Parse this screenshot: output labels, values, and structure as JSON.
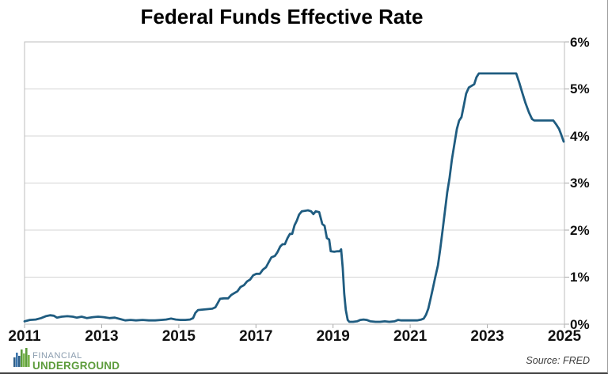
{
  "chart": {
    "title": "Federal Funds Effective Rate",
    "source": "Source: FRED"
  },
  "branding": {
    "line1": "FINANCIAL",
    "line2": "UNDERGROUND",
    "line1_color": "#8a9cae",
    "line2_color": "#5d9c3c",
    "icon": "skyline-bars-icon"
  },
  "chart_data": {
    "type": "line",
    "title": "Federal Funds Effective Rate",
    "series_name": "Federal Funds Effective Rate (%)",
    "line_color": "#1f5c80",
    "xlabel": "",
    "ylabel": "",
    "xlim": [
      2011,
      2025
    ],
    "ylim": [
      0,
      6
    ],
    "x_ticks": [
      2011,
      2013,
      2015,
      2017,
      2019,
      2021,
      2023,
      2025
    ],
    "y_ticks": [
      0,
      1,
      2,
      3,
      4,
      5,
      6
    ],
    "y_tick_suffix": "%",
    "grid": "horizontal-only",
    "legend": "none",
    "points": [
      [
        2011.0,
        0.06
      ],
      [
        2011.14,
        0.09
      ],
      [
        2011.29,
        0.1
      ],
      [
        2011.43,
        0.13
      ],
      [
        2011.55,
        0.17
      ],
      [
        2011.66,
        0.19
      ],
      [
        2011.76,
        0.18
      ],
      [
        2011.84,
        0.14
      ],
      [
        2011.96,
        0.16
      ],
      [
        2012.11,
        0.17
      ],
      [
        2012.25,
        0.16
      ],
      [
        2012.35,
        0.14
      ],
      [
        2012.48,
        0.16
      ],
      [
        2012.62,
        0.13
      ],
      [
        2012.77,
        0.15
      ],
      [
        2012.91,
        0.16
      ],
      [
        2013.05,
        0.15
      ],
      [
        2013.2,
        0.13
      ],
      [
        2013.34,
        0.14
      ],
      [
        2013.48,
        0.11
      ],
      [
        2013.61,
        0.08
      ],
      [
        2013.75,
        0.09
      ],
      [
        2013.89,
        0.08
      ],
      [
        2014.06,
        0.09
      ],
      [
        2014.22,
        0.08
      ],
      [
        2014.39,
        0.08
      ],
      [
        2014.55,
        0.09
      ],
      [
        2014.67,
        0.1
      ],
      [
        2014.8,
        0.12
      ],
      [
        2014.92,
        0.1
      ],
      [
        2015.04,
        0.09
      ],
      [
        2015.17,
        0.09
      ],
      [
        2015.29,
        0.1
      ],
      [
        2015.37,
        0.13
      ],
      [
        2015.43,
        0.24
      ],
      [
        2015.5,
        0.3
      ],
      [
        2015.6,
        0.31
      ],
      [
        2015.74,
        0.32
      ],
      [
        2015.87,
        0.33
      ],
      [
        2015.95,
        0.36
      ],
      [
        2016.01,
        0.45
      ],
      [
        2016.07,
        0.54
      ],
      [
        2016.17,
        0.55
      ],
      [
        2016.28,
        0.55
      ],
      [
        2016.36,
        0.62
      ],
      [
        2016.44,
        0.66
      ],
      [
        2016.52,
        0.7
      ],
      [
        2016.6,
        0.79
      ],
      [
        2016.69,
        0.83
      ],
      [
        2016.77,
        0.91
      ],
      [
        2016.85,
        0.95
      ],
      [
        2016.93,
        1.04
      ],
      [
        2017.01,
        1.07
      ],
      [
        2017.1,
        1.07
      ],
      [
        2017.18,
        1.16
      ],
      [
        2017.26,
        1.21
      ],
      [
        2017.32,
        1.3
      ],
      [
        2017.4,
        1.42
      ],
      [
        2017.49,
        1.45
      ],
      [
        2017.55,
        1.52
      ],
      [
        2017.63,
        1.65
      ],
      [
        2017.69,
        1.7
      ],
      [
        2017.75,
        1.7
      ],
      [
        2017.82,
        1.83
      ],
      [
        2017.88,
        1.92
      ],
      [
        2017.94,
        1.92
      ],
      [
        2018.0,
        2.1
      ],
      [
        2018.06,
        2.2
      ],
      [
        2018.12,
        2.33
      ],
      [
        2018.19,
        2.4
      ],
      [
        2018.27,
        2.41
      ],
      [
        2018.35,
        2.42
      ],
      [
        2018.43,
        2.4
      ],
      [
        2018.49,
        2.34
      ],
      [
        2018.55,
        2.4
      ],
      [
        2018.64,
        2.38
      ],
      [
        2018.72,
        2.13
      ],
      [
        2018.78,
        2.09
      ],
      [
        2018.84,
        1.83
      ],
      [
        2018.9,
        1.8
      ],
      [
        2018.94,
        1.55
      ],
      [
        2019.03,
        1.54
      ],
      [
        2019.11,
        1.55
      ],
      [
        2019.17,
        1.55
      ],
      [
        2019.21,
        1.59
      ],
      [
        2019.25,
        1.2
      ],
      [
        2019.29,
        0.65
      ],
      [
        2019.33,
        0.3
      ],
      [
        2019.38,
        0.09
      ],
      [
        2019.42,
        0.05
      ],
      [
        2019.52,
        0.05
      ],
      [
        2019.62,
        0.06
      ],
      [
        2019.71,
        0.09
      ],
      [
        2019.79,
        0.1
      ],
      [
        2019.87,
        0.09
      ],
      [
        2019.97,
        0.06
      ],
      [
        2020.1,
        0.05
      ],
      [
        2020.22,
        0.05
      ],
      [
        2020.34,
        0.06
      ],
      [
        2020.46,
        0.05
      ],
      [
        2020.59,
        0.06
      ],
      [
        2020.69,
        0.09
      ],
      [
        2020.77,
        0.08
      ],
      [
        2020.87,
        0.08
      ],
      [
        2020.98,
        0.08
      ],
      [
        2021.08,
        0.08
      ],
      [
        2021.18,
        0.08
      ],
      [
        2021.29,
        0.1
      ],
      [
        2021.35,
        0.12
      ],
      [
        2021.41,
        0.2
      ],
      [
        2021.47,
        0.33
      ],
      [
        2021.53,
        0.55
      ],
      [
        2021.59,
        0.77
      ],
      [
        2021.65,
        1.0
      ],
      [
        2021.72,
        1.25
      ],
      [
        2021.78,
        1.6
      ],
      [
        2021.84,
        2.0
      ],
      [
        2021.9,
        2.4
      ],
      [
        2021.96,
        2.8
      ],
      [
        2022.02,
        3.1
      ],
      [
        2022.08,
        3.5
      ],
      [
        2022.15,
        3.85
      ],
      [
        2022.21,
        4.15
      ],
      [
        2022.27,
        4.33
      ],
      [
        2022.33,
        4.4
      ],
      [
        2022.39,
        4.65
      ],
      [
        2022.45,
        4.9
      ],
      [
        2022.52,
        5.03
      ],
      [
        2022.6,
        5.07
      ],
      [
        2022.66,
        5.1
      ],
      [
        2022.72,
        5.25
      ],
      [
        2022.78,
        5.33
      ],
      [
        2022.99,
        5.33
      ],
      [
        2023.19,
        5.33
      ],
      [
        2023.4,
        5.33
      ],
      [
        2023.6,
        5.33
      ],
      [
        2023.75,
        5.33
      ],
      [
        2023.83,
        5.13
      ],
      [
        2023.91,
        4.91
      ],
      [
        2023.99,
        4.7
      ],
      [
        2024.08,
        4.5
      ],
      [
        2024.16,
        4.36
      ],
      [
        2024.22,
        4.33
      ],
      [
        2024.34,
        4.33
      ],
      [
        2024.47,
        4.33
      ],
      [
        2024.59,
        4.33
      ],
      [
        2024.71,
        4.33
      ],
      [
        2024.79,
        4.24
      ],
      [
        2024.86,
        4.15
      ],
      [
        2024.92,
        4.02
      ],
      [
        2024.98,
        3.88
      ]
    ]
  }
}
